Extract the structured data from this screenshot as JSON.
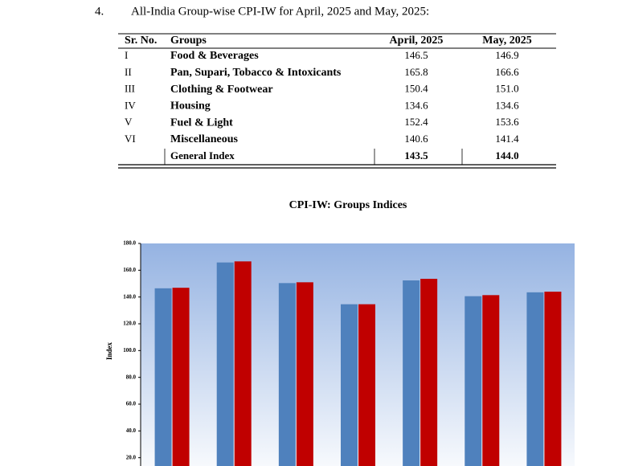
{
  "section": {
    "number": "4.",
    "heading": "All-India Group-wise CPI-IW for April, 2025 and May, 2025:"
  },
  "table": {
    "header": [
      "Sr. No.",
      "Groups",
      "April, 2025",
      "May, 2025"
    ],
    "rows": [
      [
        "I",
        "Food & Beverages",
        "146.5",
        "146.9"
      ],
      [
        "II",
        "Pan, Supari, Tobacco & Intoxicants",
        "165.8",
        "166.6"
      ],
      [
        "III",
        "Clothing & Footwear",
        "150.4",
        "151.0"
      ],
      [
        "IV",
        "Housing",
        "134.6",
        "134.6"
      ],
      [
        "V",
        "Fuel & Light",
        "152.4",
        "153.6"
      ],
      [
        "VI",
        "Miscellaneous",
        "140.6",
        "141.4"
      ]
    ],
    "total": {
      "label": "General Index",
      "april": "143.5",
      "may": "144.0"
    }
  },
  "chart_data": {
    "type": "bar",
    "title": "CPI-IW: Groups Indices",
    "y_label": "Index",
    "categories": [
      null,
      null,
      null,
      null,
      null,
      null,
      null
    ],
    "series": [
      {
        "color": "#4f81bd",
        "values": [
          146.5,
          165.8,
          150.4,
          134.6,
          152.4,
          140.6,
          143.5
        ]
      },
      {
        "color": "#c00000",
        "values": [
          146.9,
          166.6,
          151.0,
          134.6,
          153.6,
          141.4,
          144.0
        ]
      }
    ],
    "ylim": [
      0,
      180
    ],
    "yticks": [
      {
        "value": 20,
        "label": "20.0"
      },
      {
        "value": 40,
        "label": "40.0"
      },
      {
        "value": 60,
        "label": "60.0"
      },
      {
        "value": 80,
        "label": "80.0"
      },
      {
        "value": 100,
        "label": "100.0"
      },
      {
        "value": 120,
        "label": "120.0"
      },
      {
        "value": 140,
        "label": "140.0"
      },
      {
        "value": 160,
        "label": "160.0"
      },
      {
        "value": 180,
        "label": "180.0"
      }
    ]
  }
}
